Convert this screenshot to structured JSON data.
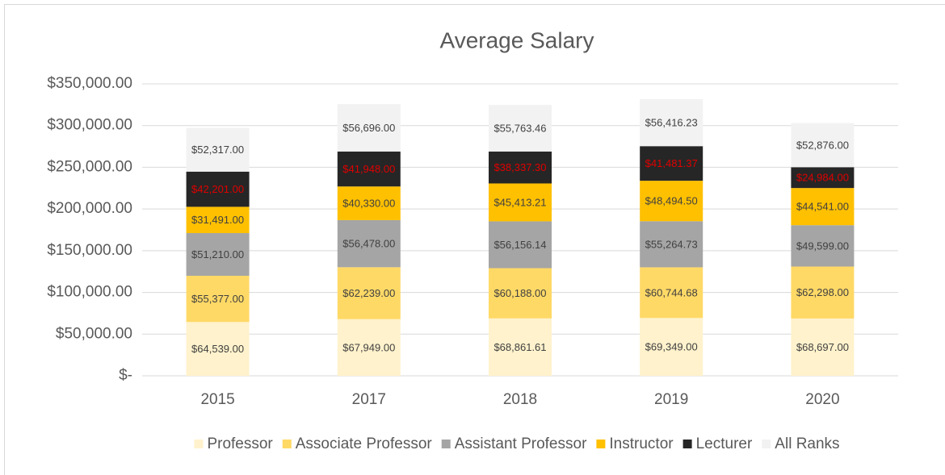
{
  "chart_data": {
    "type": "stacked_bar",
    "title": "Average Salary",
    "categories": [
      "2015",
      "2017",
      "2018",
      "2019",
      "2020"
    ],
    "ylim": [
      0,
      350000
    ],
    "yticks": [
      {
        "value": 0,
        "label": "$-"
      },
      {
        "value": 50000,
        "label": "$50,000.00"
      },
      {
        "value": 100000,
        "label": "$100,000.00"
      },
      {
        "value": 150000,
        "label": "$150,000.00"
      },
      {
        "value": 200000,
        "label": "$200,000.00"
      },
      {
        "value": 250000,
        "label": "$250,000.00"
      },
      {
        "value": 300000,
        "label": "$300,000.00"
      },
      {
        "value": 350000,
        "label": "$350,000.00"
      }
    ],
    "grid": true,
    "legend": "bottom",
    "series": [
      {
        "name": "Professor",
        "color": "#fff2cc",
        "label_color": "#404040",
        "values": [
          64539,
          67949,
          68861.61,
          69349,
          68697
        ],
        "value_labels": [
          "$64,539.00",
          "$67,949.00",
          "$68,861.61",
          "$69,349.00",
          "$68,697.00"
        ]
      },
      {
        "name": "Associate Professor",
        "color": "#ffd966",
        "label_color": "#404040",
        "values": [
          55377,
          62239,
          60188,
          60744.68,
          62298
        ],
        "value_labels": [
          "$55,377.00",
          "$62,239.00",
          "$60,188.00",
          "$60,744.68",
          "$62,298.00"
        ]
      },
      {
        "name": "Assistant Professor",
        "color": "#a5a5a5",
        "label_color": "#404040",
        "values": [
          51210,
          56478,
          56156.14,
          55264.73,
          49599
        ],
        "value_labels": [
          "$51,210.00",
          "$56,478.00",
          "$56,156.14",
          "$55,264.73",
          "$49,599.00"
        ]
      },
      {
        "name": "Instructor",
        "color": "#ffc000",
        "label_color": "#404040",
        "values": [
          31491,
          40330,
          45413.21,
          48494.5,
          44541
        ],
        "value_labels": [
          "$31,491.00",
          "$40,330.00",
          "$45,413.21",
          "$48,494.50",
          "$44,541.00"
        ]
      },
      {
        "name": "Lecturer",
        "color": "#262626",
        "label_color": "#e00000",
        "values": [
          42201,
          41948,
          38337.3,
          41481.37,
          24984
        ],
        "value_labels": [
          "$42,201.00",
          "$41,948.00",
          "$38,337.30",
          "$41,481.37",
          "$24,984.00"
        ]
      },
      {
        "name": "All Ranks",
        "color": "#f2f2f2",
        "label_color": "#404040",
        "values": [
          52317,
          56696,
          55763.46,
          56416.23,
          52876
        ],
        "value_labels": [
          "$52,317.00",
          "$56,696.00",
          "$55,763.46",
          "$56,416.23",
          "$52,876.00"
        ]
      }
    ]
  }
}
